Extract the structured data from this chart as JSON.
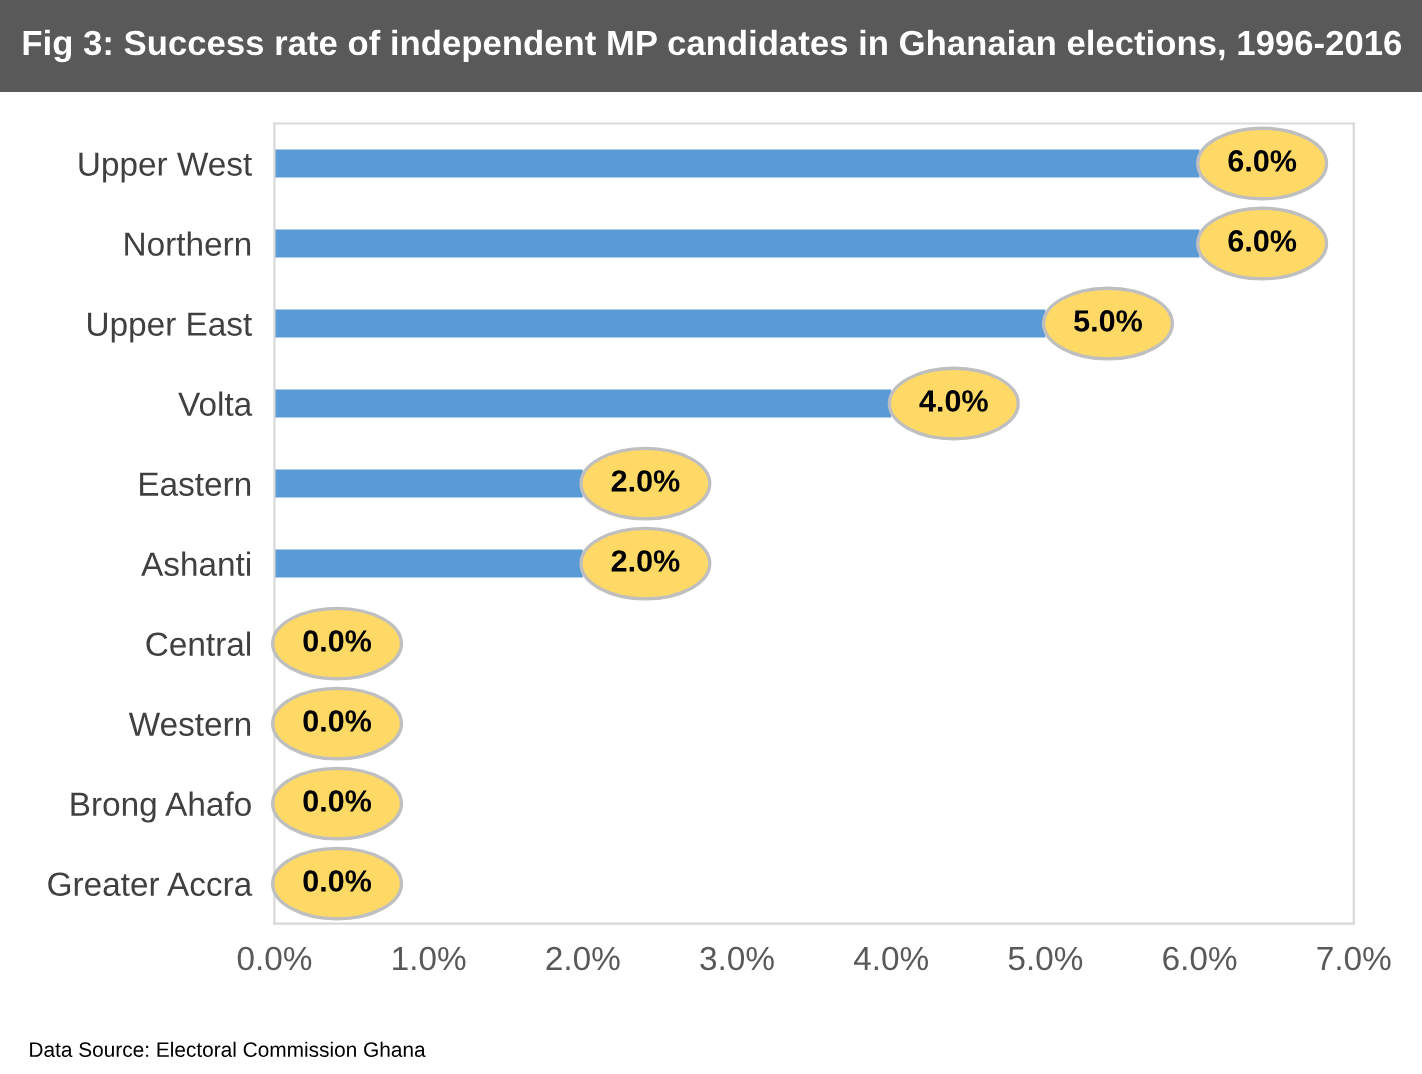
{
  "chart_data": {
    "type": "bar",
    "orientation": "horizontal",
    "title": "Fig 3: Success rate of independent MP candidates in Ghanaian elections, 1996-2016",
    "categories": [
      "Upper West",
      "Northern",
      "Upper East",
      "Volta",
      "Eastern",
      "Ashanti",
      "Central",
      "Western",
      "Brong Ahafo",
      "Greater Accra"
    ],
    "values": [
      6.0,
      6.0,
      5.0,
      4.0,
      2.0,
      2.0,
      0.0,
      0.0,
      0.0,
      0.0
    ],
    "value_labels": [
      "6.0%",
      "6.0%",
      "5.0%",
      "4.0%",
      "2.0%",
      "2.0%",
      "0.0%",
      "0.0%",
      "0.0%",
      "0.0%"
    ],
    "color": "#5b9bd5",
    "xlim": [
      0,
      7
    ],
    "xticks": [
      {
        "value": 0,
        "label": "0.0%"
      },
      {
        "value": 1,
        "label": "1.0%"
      },
      {
        "value": 2,
        "label": "2.0%"
      },
      {
        "value": 3,
        "label": "3.0%"
      },
      {
        "value": 4,
        "label": "4.0%"
      },
      {
        "value": 5,
        "label": "5.0%"
      },
      {
        "value": 6,
        "label": "6.0%"
      },
      {
        "value": 7,
        "label": "7.0%"
      }
    ],
    "grid": false,
    "annotations": [
      "Data Source: Electoral Commission Ghana"
    ]
  }
}
